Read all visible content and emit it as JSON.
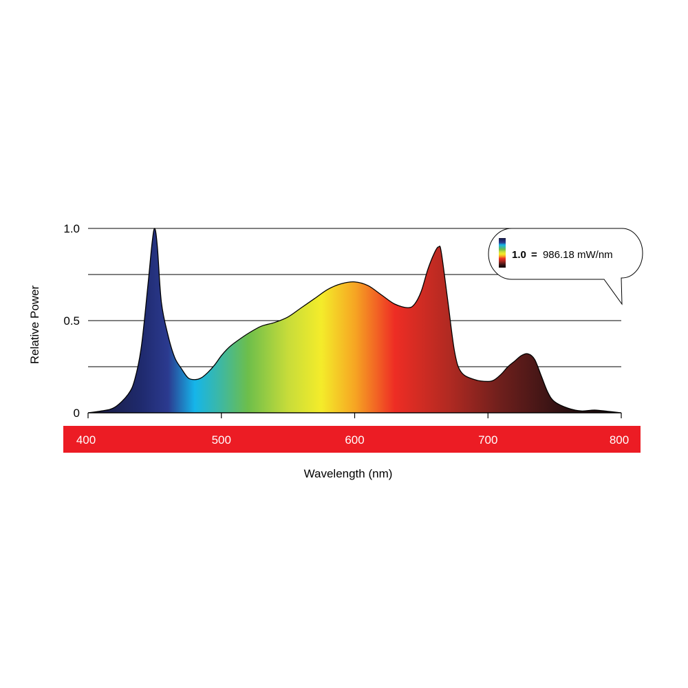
{
  "chart_data": {
    "type": "area",
    "title": "",
    "xlabel": "Wavelength (nm)",
    "ylabel": "Relative Power",
    "xlim": [
      400,
      800
    ],
    "ylim": [
      0,
      1.0
    ],
    "x_ticks": [
      400,
      500,
      600,
      700,
      800
    ],
    "x_tick_labels": [
      "400",
      "500",
      "600",
      "700",
      "800"
    ],
    "y_ticks": [
      0,
      0.5,
      1.0
    ],
    "y_tick_labels": [
      "0",
      "0.5",
      "1.0"
    ],
    "gridlines_y": [
      0.25,
      0.5,
      0.75,
      1.0
    ],
    "grid": true,
    "legend": {
      "placement": "top-right",
      "value_bold": "1.0",
      "equals": "=",
      "value_text": "986.18 mW/nm"
    },
    "colors": {
      "axis_band": "#ec1c24",
      "band_text": "#ffffff",
      "grid": "#000000",
      "spectrum_stops": [
        {
          "nm": 400,
          "color": "#1a1a3a"
        },
        {
          "nm": 440,
          "color": "#1f2a6e"
        },
        {
          "nm": 460,
          "color": "#2b3a8f"
        },
        {
          "nm": 480,
          "color": "#15b5ea"
        },
        {
          "nm": 500,
          "color": "#3fb8a0"
        },
        {
          "nm": 520,
          "color": "#6dbe4b"
        },
        {
          "nm": 550,
          "color": "#c7dc3a"
        },
        {
          "nm": 575,
          "color": "#f4ec2a"
        },
        {
          "nm": 600,
          "color": "#f6a623"
        },
        {
          "nm": 630,
          "color": "#ee2d24"
        },
        {
          "nm": 670,
          "color": "#b22a22"
        },
        {
          "nm": 710,
          "color": "#6d1f1c"
        },
        {
          "nm": 760,
          "color": "#2a1012"
        },
        {
          "nm": 800,
          "color": "#120808"
        }
      ]
    },
    "series": [
      {
        "x": [
          400,
          410,
          420,
          430,
          435,
          440,
          445,
          448,
          450,
          452,
          455,
          460,
          465,
          470,
          475,
          480,
          485,
          490,
          495,
          500,
          505,
          510,
          520,
          530,
          540,
          550,
          560,
          570,
          580,
          590,
          600,
          610,
          620,
          630,
          640,
          645,
          650,
          655,
          660,
          663,
          665,
          670,
          675,
          680,
          690,
          700,
          705,
          710,
          715,
          720,
          725,
          730,
          735,
          740,
          745,
          750,
          760,
          770,
          780,
          790,
          800
        ],
        "y": [
          0.0,
          0.01,
          0.03,
          0.1,
          0.18,
          0.36,
          0.7,
          0.92,
          1.0,
          0.9,
          0.6,
          0.42,
          0.3,
          0.24,
          0.19,
          0.18,
          0.19,
          0.22,
          0.26,
          0.31,
          0.35,
          0.38,
          0.43,
          0.47,
          0.49,
          0.52,
          0.57,
          0.62,
          0.67,
          0.7,
          0.71,
          0.69,
          0.64,
          0.59,
          0.57,
          0.59,
          0.66,
          0.78,
          0.87,
          0.9,
          0.87,
          0.6,
          0.33,
          0.22,
          0.18,
          0.17,
          0.18,
          0.21,
          0.25,
          0.28,
          0.31,
          0.32,
          0.29,
          0.2,
          0.11,
          0.06,
          0.025,
          0.01,
          0.015,
          0.008,
          0.0
        ]
      }
    ]
  }
}
